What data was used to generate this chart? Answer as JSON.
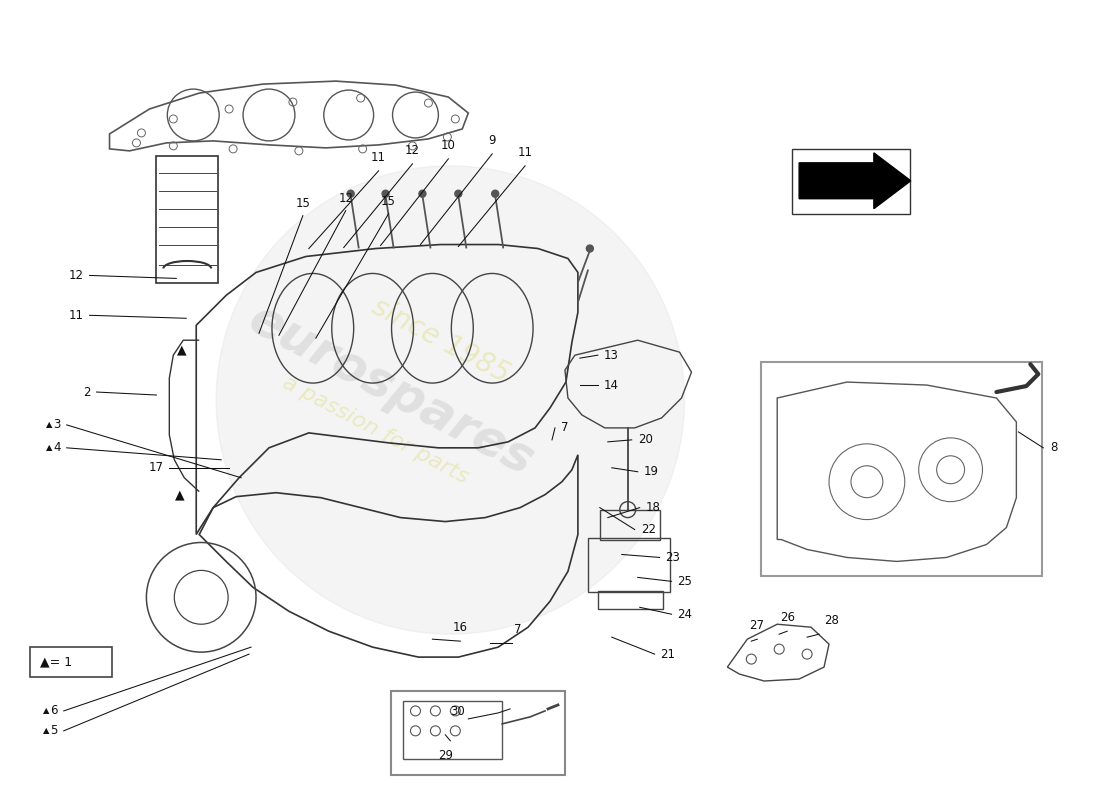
{
  "bg_color": "#ffffff",
  "line_color": "#333333",
  "label_color": "#111111",
  "watermark_color1": "#d0d0d0",
  "watermark_color2": "#e8e8b8",
  "watermark_text1": "eurospares",
  "watermark_text2": "a passion for parts",
  "watermark_text3": "since 1985",
  "arrow_color": "#111111",
  "figsize": [
    11.0,
    8.0
  ],
  "dpi": 100
}
